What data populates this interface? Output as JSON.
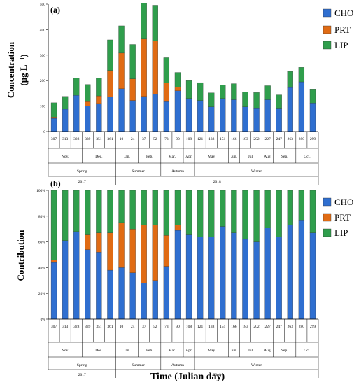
{
  "colors": {
    "CHO": "#2f6fd0",
    "PRT": "#e06b14",
    "LIP": "#2f9e4c",
    "frame": "#000000"
  },
  "figure": {
    "xlabel": "Time (Julian day)",
    "legend": [
      "CHO",
      "PRT",
      "LIP"
    ]
  },
  "axis": {
    "days": [
      "307",
      "313",
      "328",
      "339",
      "351",
      "361",
      "10",
      "24",
      "37",
      "52",
      "73",
      "90",
      "108",
      "121",
      "138",
      "151",
      "166",
      "183",
      "202",
      "227",
      "247",
      "263",
      "280",
      "299"
    ],
    "months": [
      {
        "label": "Nov.",
        "span": [
          0,
          3
        ]
      },
      {
        "label": "Dec.",
        "span": [
          3,
          6
        ]
      },
      {
        "label": "Jan.",
        "span": [
          6,
          8
        ]
      },
      {
        "label": "Feb.",
        "span": [
          8,
          10
        ]
      },
      {
        "label": "Mar.",
        "span": [
          10,
          12
        ]
      },
      {
        "label": "Apr.",
        "span": [
          12,
          13
        ]
      },
      {
        "label": "May",
        "span": [
          13,
          16
        ]
      },
      {
        "label": "Jun.",
        "span": [
          16,
          17
        ]
      },
      {
        "label": "Jul.",
        "span": [
          17,
          19
        ]
      },
      {
        "label": "Aug.",
        "span": [
          19,
          20
        ]
      },
      {
        "label": "Sep.",
        "span": [
          20,
          22
        ]
      },
      {
        "label": "Oct.",
        "span": [
          22,
          24
        ]
      }
    ],
    "seasons": [
      {
        "label": "Spring",
        "span": [
          0,
          6
        ]
      },
      {
        "label": "Summer",
        "span": [
          6,
          10
        ]
      },
      {
        "label": "Autumn",
        "span": [
          10,
          13
        ]
      },
      {
        "label": "Winter",
        "span": [
          13,
          24
        ]
      }
    ],
    "years": [
      {
        "label": "2017",
        "span": [
          0,
          6
        ]
      },
      {
        "label": "2018",
        "span": [
          6,
          24
        ]
      }
    ]
  },
  "chart_data": [
    {
      "type": "bar",
      "stacked": true,
      "panel_label": "(a)",
      "ylabel": "Concentration (μg L⁻¹)",
      "ylim": [
        0,
        500
      ],
      "yticks": [
        "0",
        "100",
        "200",
        "300",
        "400",
        "500"
      ],
      "categories": [
        "307",
        "313",
        "328",
        "339",
        "351",
        "361",
        "10",
        "24",
        "37",
        "52",
        "73",
        "90",
        "108",
        "121",
        "138",
        "151",
        "166",
        "183",
        "202",
        "227",
        "247",
        "263",
        "280",
        "299"
      ],
      "series": [
        {
          "name": "CHO",
          "values": [
            52,
            88,
            142,
            100,
            110,
            135,
            168,
            122,
            138,
            146,
            120,
            160,
            130,
            122,
            97,
            130,
            125,
            97,
            93,
            125,
            92,
            173,
            195,
            112
          ]
        },
        {
          "name": "PRT",
          "values": [
            5,
            0,
            0,
            20,
            30,
            105,
            140,
            85,
            225,
            210,
            70,
            15,
            0,
            0,
            0,
            0,
            0,
            0,
            0,
            0,
            0,
            0,
            0,
            0
          ]
        },
        {
          "name": "LIP",
          "values": [
            56,
            50,
            68,
            65,
            70,
            120,
            107,
            135,
            142,
            140,
            100,
            57,
            70,
            70,
            55,
            52,
            63,
            58,
            60,
            55,
            52,
            63,
            57,
            55
          ]
        }
      ]
    },
    {
      "type": "bar",
      "stacked": true,
      "percent": true,
      "panel_label": "(b)",
      "ylabel": "Contribution",
      "ylim": [
        0,
        100
      ],
      "yticks": [
        "0%",
        "20%",
        "40%",
        "60%",
        "80%",
        "100%"
      ],
      "categories": [
        "307",
        "313",
        "328",
        "339",
        "351",
        "361",
        "10",
        "24",
        "37",
        "52",
        "73",
        "90",
        "108",
        "121",
        "138",
        "151",
        "166",
        "183",
        "202",
        "227",
        "247",
        "263",
        "280",
        "299"
      ],
      "series": [
        {
          "name": "CHO",
          "values": [
            44,
            61,
            68,
            54,
            52,
            38,
            40,
            36,
            28,
            30,
            41,
            69,
            66,
            64,
            64,
            72,
            67,
            62,
            60,
            71,
            64,
            73,
            77,
            67
          ]
        },
        {
          "name": "PRT",
          "values": [
            2,
            0,
            0,
            12,
            15,
            29,
            35,
            34,
            45,
            43,
            24,
            4,
            0,
            0,
            0,
            0,
            0,
            0,
            0,
            0,
            0,
            0,
            0,
            0
          ]
        },
        {
          "name": "LIP",
          "values": [
            54,
            39,
            32,
            34,
            33,
            33,
            25,
            30,
            27,
            27,
            35,
            27,
            34,
            36,
            36,
            28,
            33,
            38,
            40,
            29,
            36,
            27,
            23,
            33
          ]
        }
      ]
    }
  ]
}
